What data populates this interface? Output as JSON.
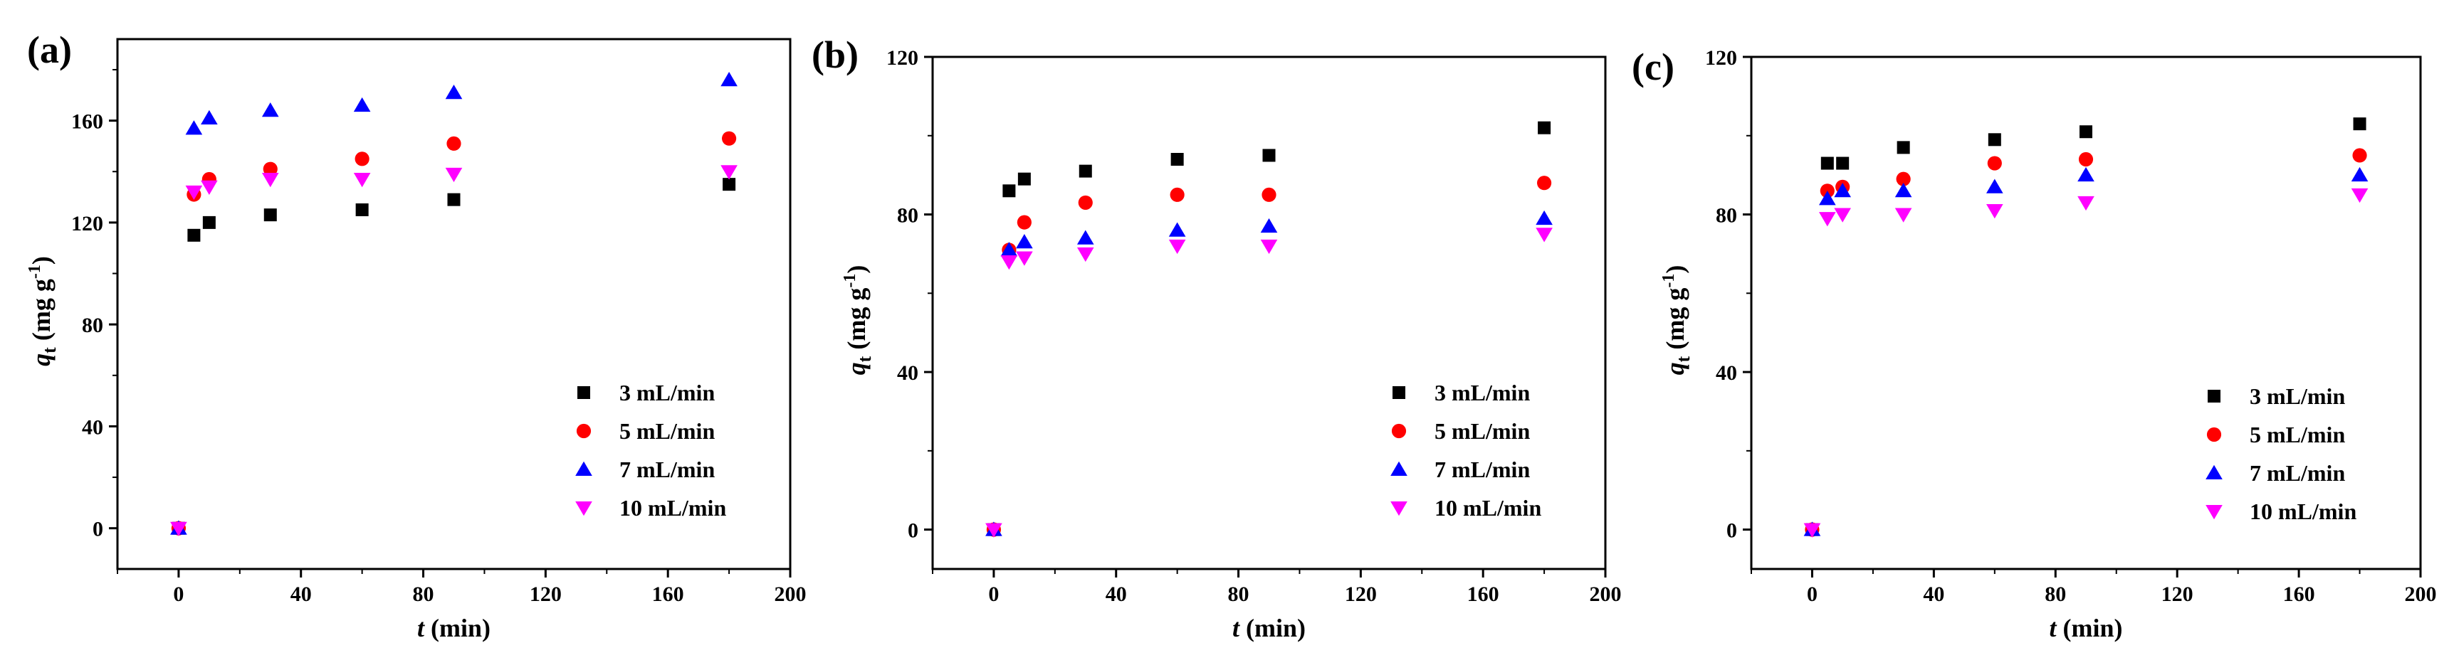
{
  "figure": {
    "series_styles": [
      {
        "name": "3 mL/min",
        "color": "#000000",
        "marker": "square"
      },
      {
        "name": "5 mL/min",
        "color": "#ff0000",
        "marker": "circle"
      },
      {
        "name": "7 mL/min",
        "color": "#0000ff",
        "marker": "triangle-up"
      },
      {
        "name": "10 mL/min",
        "color": "#ff00ff",
        "marker": "triangle-down"
      }
    ]
  },
  "chart_data": [
    {
      "panel_label": "(a)",
      "type": "scatter",
      "xlabel_italic": "t",
      "xlabel_unit": " (min)",
      "ylabel_italic": "q",
      "ylabel_sub": "t",
      "ylabel_unit": " (mg g",
      "ylabel_sup": "-1",
      "ylabel_close": ")",
      "xlim": [
        -20,
        200
      ],
      "ylim": [
        -16,
        192
      ],
      "xticks": [
        0,
        40,
        80,
        120,
        160,
        200
      ],
      "yticks": [
        0,
        40,
        80,
        120,
        160
      ],
      "legend": "bottom-right",
      "x": [
        0,
        5,
        10,
        30,
        60,
        90,
        180
      ],
      "series": [
        {
          "name": "3 mL/min",
          "values": [
            0,
            115,
            120,
            123,
            125,
            129,
            135
          ]
        },
        {
          "name": "5 mL/min",
          "values": [
            0,
            131,
            137,
            141,
            145,
            151,
            153
          ]
        },
        {
          "name": "7 mL/min",
          "values": [
            0,
            157,
            161,
            164,
            166,
            171,
            176
          ]
        },
        {
          "name": "10 mL/min",
          "values": [
            0,
            132,
            134,
            137,
            137,
            139,
            140
          ]
        }
      ]
    },
    {
      "panel_label": "(b)",
      "type": "scatter",
      "xlabel_italic": "t",
      "xlabel_unit": " (min)",
      "ylabel_italic": "q",
      "ylabel_sub": "t",
      "ylabel_unit": " (mg g",
      "ylabel_sup": "-1",
      "ylabel_close": ")",
      "xlim": [
        -20,
        200
      ],
      "ylim": [
        -10,
        120
      ],
      "xticks": [
        0,
        40,
        80,
        120,
        160,
        200
      ],
      "yticks": [
        0,
        40,
        80,
        120
      ],
      "legend": "bottom-right",
      "x": [
        0,
        5,
        10,
        30,
        60,
        90,
        180
      ],
      "series": [
        {
          "name": "3 mL/min",
          "values": [
            0,
            86,
            89,
            91,
            94,
            95,
            102
          ]
        },
        {
          "name": "5 mL/min",
          "values": [
            0,
            71,
            78,
            83,
            85,
            85,
            88
          ]
        },
        {
          "name": "7 mL/min",
          "values": [
            0,
            71,
            73,
            74,
            76,
            77,
            79
          ]
        },
        {
          "name": "10 mL/min",
          "values": [
            0,
            68,
            69,
            70,
            72,
            72,
            75
          ]
        }
      ]
    },
    {
      "panel_label": "(c)",
      "type": "scatter",
      "xlabel_italic": "t",
      "xlabel_unit": " (min)",
      "ylabel_italic": "q",
      "ylabel_sub": "t",
      "ylabel_unit": " (mg g",
      "ylabel_sup": "-1",
      "ylabel_close": ")",
      "xlim": [
        -20,
        200
      ],
      "ylim": [
        -10,
        120
      ],
      "xticks": [
        0,
        40,
        80,
        120,
        160,
        200
      ],
      "yticks": [
        0,
        40,
        80,
        120
      ],
      "legend": "bottom-right",
      "x": [
        0,
        5,
        10,
        30,
        60,
        90,
        180
      ],
      "series": [
        {
          "name": "3 mL/min",
          "values": [
            0,
            93,
            93,
            97,
            99,
            101,
            103
          ]
        },
        {
          "name": "5 mL/min",
          "values": [
            0,
            86,
            87,
            89,
            93,
            94,
            95
          ]
        },
        {
          "name": "7 mL/min",
          "values": [
            0,
            84,
            86,
            86,
            87,
            90,
            90
          ]
        },
        {
          "name": "10 mL/min",
          "values": [
            0,
            79,
            80,
            80,
            81,
            83,
            85
          ]
        }
      ]
    }
  ]
}
